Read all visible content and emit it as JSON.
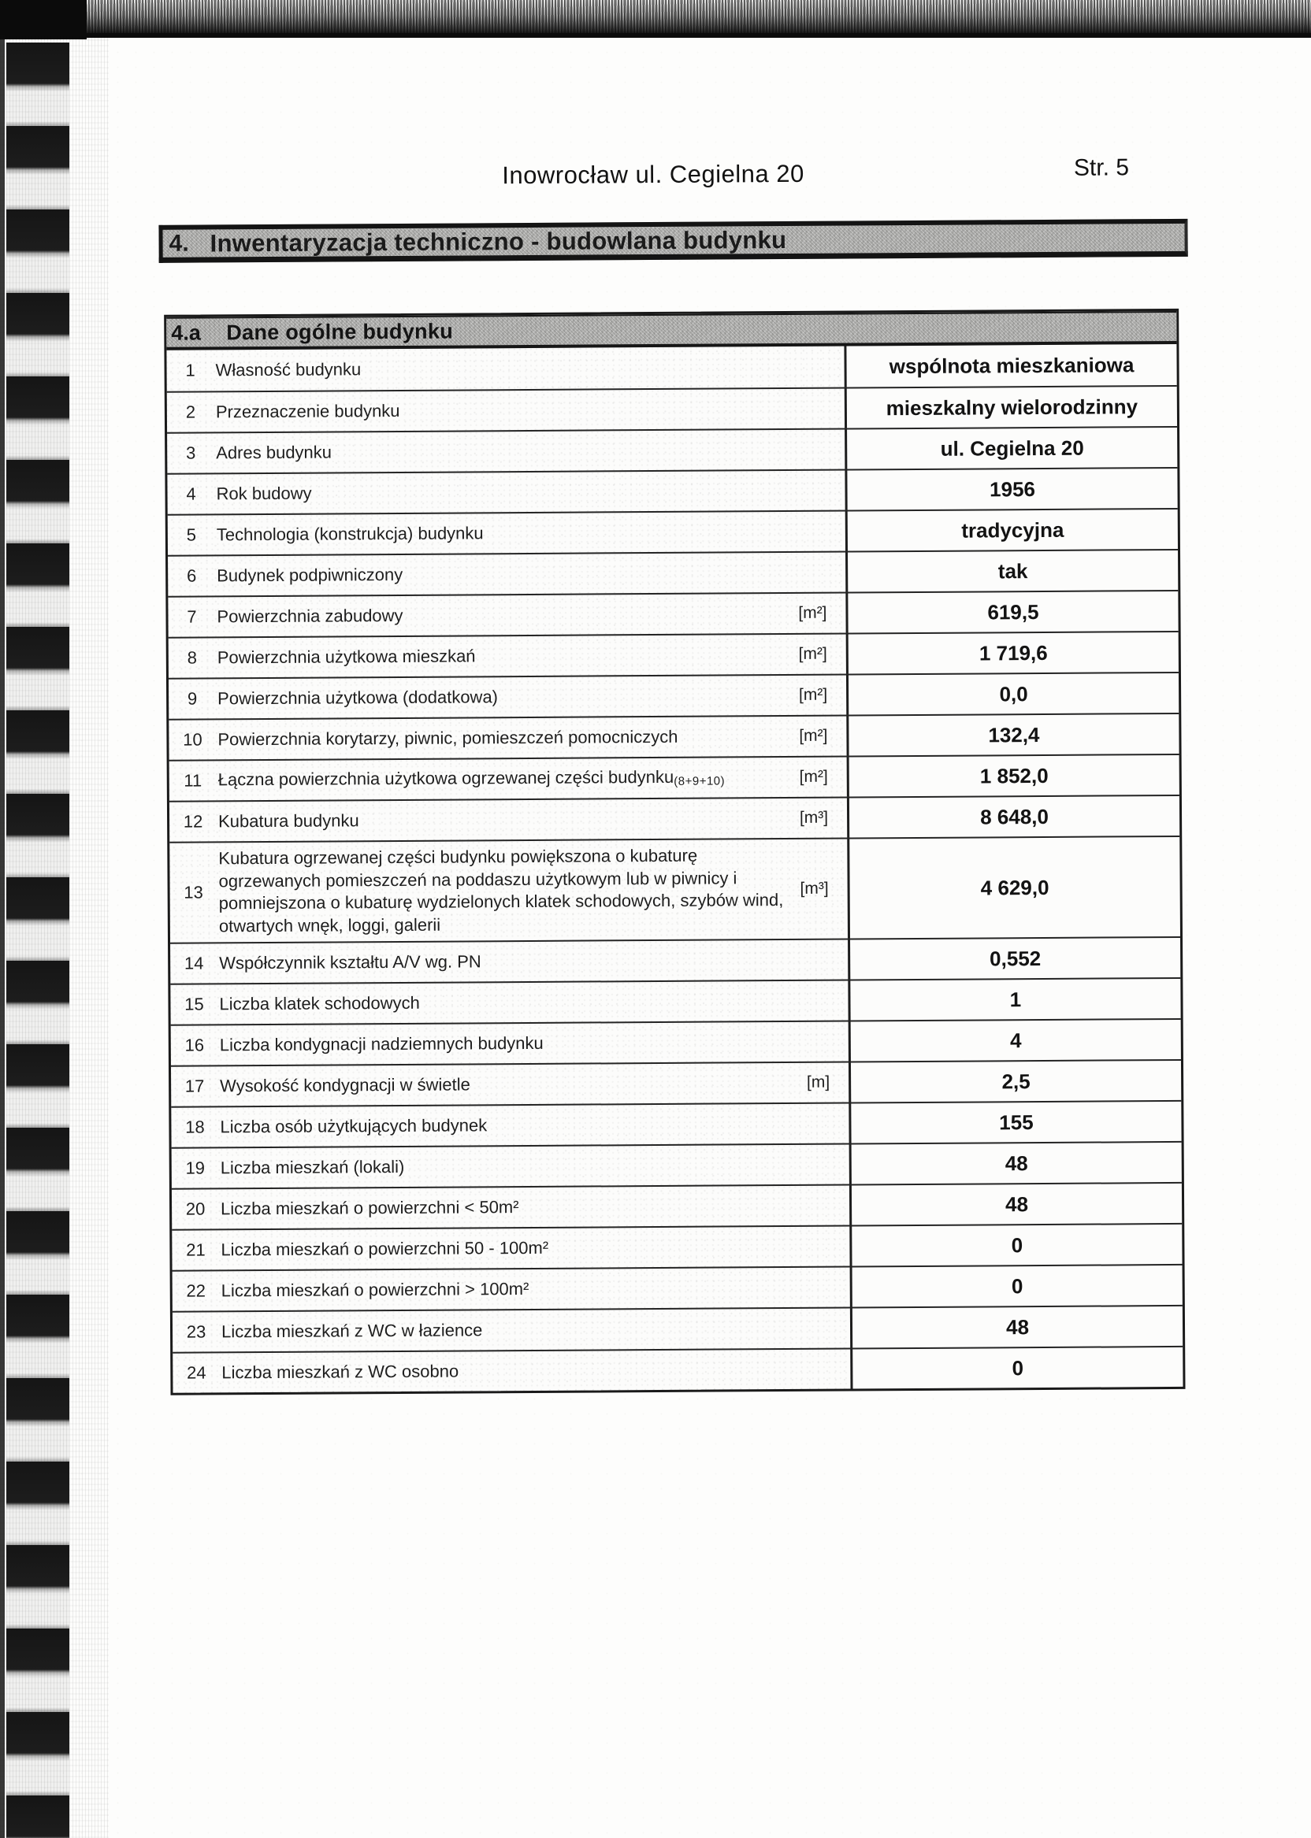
{
  "page": {
    "header_title": "Inowrocław ul. Cegielna 20",
    "page_number": "Str. 5"
  },
  "section": {
    "number": "4.",
    "title": "Inwentaryzacja techniczno - budowlana budynku"
  },
  "table": {
    "number": "4.a",
    "title": "Dane ogólne budynku",
    "rows": [
      {
        "no": "1",
        "label": "Własność budynku",
        "unit": "",
        "value": "wspólnota mieszkaniowa"
      },
      {
        "no": "2",
        "label": "Przeznaczenie budynku",
        "unit": "",
        "value": "mieszkalny wielorodzinny"
      },
      {
        "no": "3",
        "label": "Adres budynku",
        "unit": "",
        "value": "ul. Cegielna 20"
      },
      {
        "no": "4",
        "label": "Rok budowy",
        "unit": "",
        "value": "1956"
      },
      {
        "no": "5",
        "label": "Technologia (konstrukcja) budynku",
        "unit": "",
        "value": "tradycyjna"
      },
      {
        "no": "6",
        "label": "Budynek podpiwniczony",
        "unit": "",
        "value": "tak"
      },
      {
        "no": "7",
        "label": "Powierzchnia zabudowy",
        "unit": "[m²]",
        "value": "619,5"
      },
      {
        "no": "8",
        "label": "Powierzchnia użytkowa mieszkań",
        "unit": "[m²]",
        "value": "1 719,6"
      },
      {
        "no": "9",
        "label": "Powierzchnia użytkowa (dodatkowa)",
        "unit": "[m²]",
        "value": "0,0"
      },
      {
        "no": "10",
        "label": "Powierzchnia korytarzy, piwnic, pomieszczeń pomocniczych",
        "unit": "[m²]",
        "value": "132,4"
      },
      {
        "no": "11",
        "label": "Łączna powierzchnia użytkowa ogrzewanej części budynku",
        "label_sub": "(8+9+10)",
        "unit": "[m²]",
        "value": "1 852,0"
      },
      {
        "no": "12",
        "label": "Kubatura budynku",
        "unit": "[m³]",
        "value": "8 648,0"
      },
      {
        "no": "13",
        "label": "Kubatura ogrzewanej części budynku powiększona o kubaturę ogrzewanych pomieszczeń na poddaszu użytkowym lub w piwnicy i pomniejszona o kubaturę wydzielonych klatek schodowych, szybów wind, otwartych wnęk, loggi, galerii",
        "unit": "[m³]",
        "value": "4 629,0",
        "tall": true
      },
      {
        "no": "14",
        "label": "Współczynnik kształtu A/V wg. PN",
        "unit": "",
        "value": "0,552"
      },
      {
        "no": "15",
        "label": "Liczba klatek schodowych",
        "unit": "",
        "value": "1"
      },
      {
        "no": "16",
        "label": "Liczba kondygnacji nadziemnych budynku",
        "unit": "",
        "value": "4"
      },
      {
        "no": "17",
        "label": "Wysokość kondygnacji w świetle",
        "unit": "[m]",
        "value": "2,5"
      },
      {
        "no": "18",
        "label": "Liczba osób użytkujących budynek",
        "unit": "",
        "value": "155"
      },
      {
        "no": "19",
        "label": "Liczba mieszkań (lokali)",
        "unit": "",
        "value": "48"
      },
      {
        "no": "20",
        "label": "Liczba mieszkań o powierzchni < 50m²",
        "unit": "",
        "value": "48"
      },
      {
        "no": "21",
        "label": "Liczba mieszkań o powierzchni 50 - 100m²",
        "unit": "",
        "value": "0"
      },
      {
        "no": "22",
        "label": "Liczba mieszkań o powierzchni > 100m²",
        "unit": "",
        "value": "0"
      },
      {
        "no": "23",
        "label": "Liczba mieszkań z WC w łazience",
        "unit": "",
        "value": "48"
      },
      {
        "no": "24",
        "label": "Liczba mieszkań z WC osobno",
        "unit": "",
        "value": "0"
      }
    ]
  },
  "colors": {
    "header_bar_background": "#b6b6b4",
    "border": "#1a1a1a",
    "text": "#161616",
    "page_background": "#fdfdfc",
    "scan_artifact": "#0b0b0b"
  }
}
